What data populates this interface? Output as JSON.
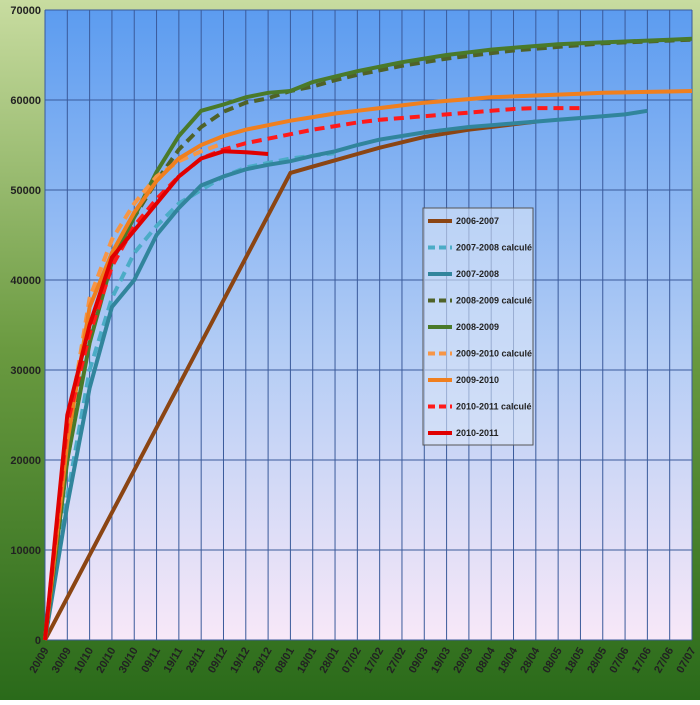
{
  "chart_data": {
    "type": "line",
    "categories": [
      "20/09",
      "30/09",
      "10/10",
      "20/10",
      "30/10",
      "09/11",
      "19/11",
      "29/11",
      "09/12",
      "19/12",
      "29/12",
      "08/01",
      "18/01",
      "28/01",
      "07/02",
      "17/02",
      "27/02",
      "09/03",
      "19/03",
      "29/03",
      "08/04",
      "18/04",
      "28/04",
      "08/05",
      "18/05",
      "28/05",
      "07/06",
      "17/06",
      "27/06",
      "07/07"
    ],
    "ylim": [
      0,
      70000
    ],
    "yticks": [
      0,
      10000,
      20000,
      30000,
      40000,
      50000,
      60000,
      70000
    ],
    "grid": true,
    "series": [
      {
        "name": "2006-2007",
        "color": "#8b4513",
        "dash": false,
        "values": [
          0,
          4718,
          9436,
          14155,
          18873,
          23591,
          28309,
          33027,
          37745,
          42464,
          47182,
          51900,
          52600,
          53300,
          54000,
          54700,
          55300,
          55900,
          56300,
          56700,
          57000,
          57300,
          57600,
          null,
          null,
          null,
          null,
          null,
          null,
          null
        ]
      },
      {
        "name": "2007-2008 calculé",
        "color": "#4bacc6",
        "dash": true,
        "values": [
          0,
          16000,
          30000,
          38000,
          43000,
          46000,
          48500,
          50000,
          51500,
          52500,
          53000,
          53500,
          53800,
          54100,
          null,
          null,
          null,
          null,
          null,
          null,
          null,
          null,
          null,
          null,
          null,
          null,
          null,
          null,
          null,
          null
        ]
      },
      {
        "name": "2007-2008",
        "color": "#31859c",
        "dash": false,
        "values": [
          0,
          15000,
          28000,
          37000,
          40000,
          45000,
          48000,
          50500,
          51500,
          52300,
          52800,
          53200,
          53800,
          54300,
          55000,
          55600,
          56000,
          56400,
          56700,
          57000,
          57200,
          57400,
          57600,
          57800,
          58000,
          58200,
          58400,
          58800,
          null,
          null
        ]
      },
      {
        "name": "2008-2009 calculé",
        "color": "#4f6228",
        "dash": true,
        "values": [
          0,
          20000,
          34000,
          43000,
          47000,
          51000,
          54500,
          57000,
          58700,
          59700,
          60200,
          61000,
          61500,
          62200,
          62800,
          63300,
          63800,
          64200,
          64600,
          64900,
          65200,
          65500,
          65700,
          65900,
          66100,
          66300,
          66400,
          66500,
          66600,
          66700
        ]
      },
      {
        "name": "2008-2009",
        "color": "#4a7a2a",
        "dash": false,
        "values": [
          0,
          20000,
          33000,
          42000,
          47000,
          52000,
          56000,
          58800,
          59500,
          60300,
          60800,
          61000,
          62000,
          62600,
          63200,
          63700,
          64200,
          64600,
          65000,
          65300,
          65600,
          65800,
          66000,
          66200,
          66300,
          66400,
          66500,
          66600,
          66700,
          66800
        ]
      },
      {
        "name": "2009-2010 calculé",
        "color": "#f79646",
        "dash": true,
        "values": [
          0,
          23000,
          38000,
          44500,
          48500,
          51500,
          53200,
          54300,
          55200,
          null,
          null,
          null,
          null,
          null,
          null,
          null,
          null,
          null,
          null,
          null,
          null,
          null,
          null,
          null,
          null,
          null,
          null,
          null,
          null,
          null
        ]
      },
      {
        "name": "2009-2010",
        "color": "#f07f1e",
        "dash": false,
        "values": [
          0,
          22000,
          37000,
          43000,
          47500,
          51000,
          53500,
          55000,
          56000,
          56700,
          57200,
          57700,
          58100,
          58500,
          58800,
          59100,
          59400,
          59700,
          59900,
          60100,
          60300,
          60400,
          60500,
          60600,
          60700,
          60800,
          60850,
          60900,
          60950,
          61000
        ]
      },
      {
        "name": "2010-2011 calculé",
        "color": "#ff1a1a",
        "dash": true,
        "values": [
          0,
          24000,
          34000,
          41500,
          46000,
          49000,
          51500,
          53500,
          54500,
          55200,
          55700,
          56200,
          56700,
          57100,
          57500,
          57800,
          58000,
          58200,
          58400,
          58600,
          58800,
          59000,
          59100,
          59100,
          59100,
          null,
          null,
          null,
          null,
          null
        ]
      },
      {
        "name": "2010-2011",
        "color": "#e00000",
        "dash": false,
        "values": [
          0,
          25000,
          35000,
          42500,
          45500,
          48500,
          51500,
          53500,
          54300,
          54200,
          54000,
          null,
          null,
          null,
          null,
          null,
          null,
          null,
          null,
          null,
          null,
          null,
          null,
          null,
          null,
          null,
          null,
          null,
          null,
          null
        ]
      }
    ]
  }
}
